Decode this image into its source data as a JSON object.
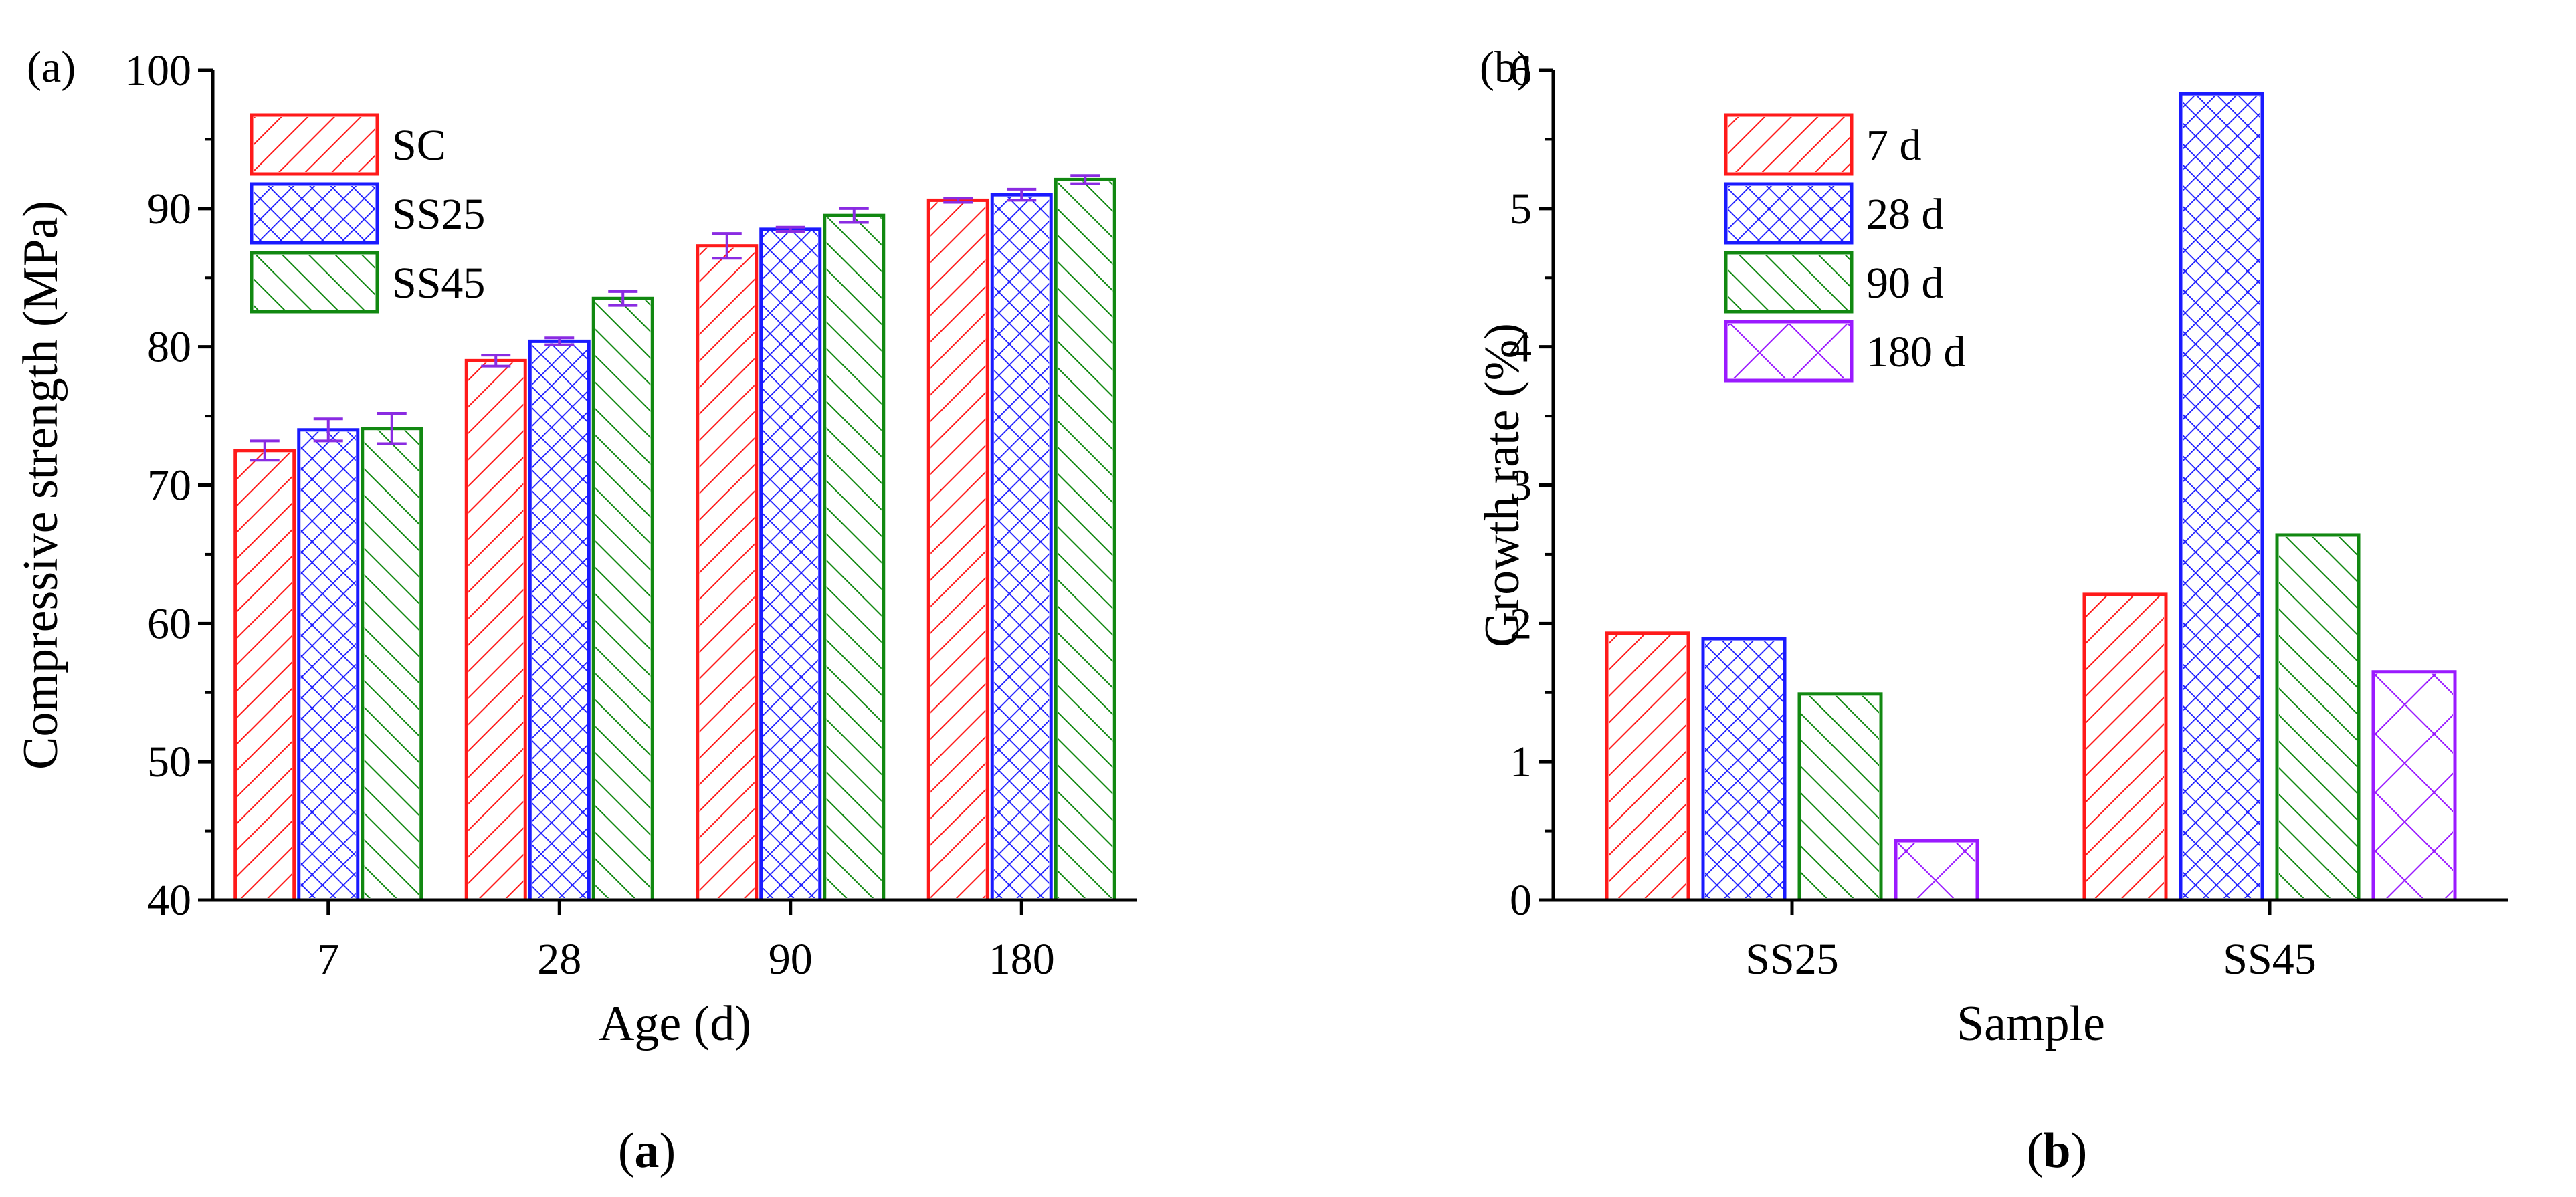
{
  "colors": {
    "red": "#ff1a1a",
    "blue": "#1a1aff",
    "green": "#118811",
    "purple": "#9a1aff",
    "error_bar": "#8a2be2"
  },
  "captions": {
    "a": {
      "open": "(",
      "letter": "a",
      "close": ")"
    },
    "b": {
      "open": "(",
      "letter": "b",
      "close": ")"
    }
  },
  "chart_data": [
    {
      "type": "bar",
      "panel_label": "(a)",
      "title": "",
      "xlabel": "Age (d)",
      "ylabel": "Compressive strength (MPa)",
      "categories": [
        "7",
        "28",
        "90",
        "180"
      ],
      "ylim": [
        40,
        100
      ],
      "yticks": [
        40,
        50,
        60,
        70,
        80,
        90,
        100
      ],
      "grid": false,
      "legend_position": "top-left",
      "series": [
        {
          "name": "SC",
          "color": "#ff1a1a",
          "pattern": "diag-right",
          "values": [
            72.5,
            79.0,
            87.3,
            90.6
          ],
          "errors": [
            0.7,
            0.4,
            0.9,
            0.15
          ]
        },
        {
          "name": "SS25",
          "color": "#1a1aff",
          "pattern": "crosshatch",
          "values": [
            74.0,
            80.4,
            88.5,
            91.0
          ],
          "errors": [
            0.8,
            0.25,
            0.15,
            0.4
          ]
        },
        {
          "name": "SS45",
          "color": "#118811",
          "pattern": "diag-left",
          "values": [
            74.1,
            83.5,
            89.5,
            92.1
          ],
          "errors": [
            1.1,
            0.5,
            0.5,
            0.3
          ]
        }
      ]
    },
    {
      "type": "bar",
      "panel_label": "(b)",
      "title": "",
      "xlabel": "Sample",
      "ylabel": "Growth rate (%)",
      "categories": [
        "SS25",
        "SS45"
      ],
      "ylim": [
        0,
        6
      ],
      "yticks": [
        0,
        1,
        2,
        3,
        4,
        5,
        6
      ],
      "grid": false,
      "legend_position": "top-left",
      "series": [
        {
          "name": "7 d",
          "color": "#ff1a1a",
          "pattern": "diag-right",
          "values": [
            1.93,
            2.21
          ]
        },
        {
          "name": "28 d",
          "color": "#1a1aff",
          "pattern": "crosshatch",
          "values": [
            1.89,
            5.83
          ]
        },
        {
          "name": "90 d",
          "color": "#118811",
          "pattern": "diag-left",
          "values": [
            1.49,
            2.64
          ]
        },
        {
          "name": "180 d",
          "color": "#9a1aff",
          "pattern": "wide-cross",
          "values": [
            0.43,
            1.65
          ]
        }
      ]
    }
  ]
}
